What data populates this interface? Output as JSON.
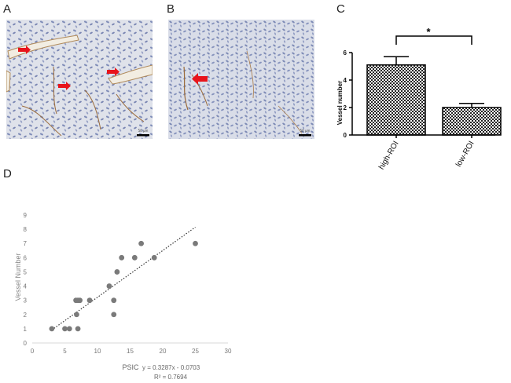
{
  "panels": {
    "a": "A",
    "b": "B",
    "c": "C",
    "d": "D"
  },
  "micrographs": {
    "a_scale": "50 μm",
    "b_scale": "50 μm",
    "arrow_color": "#e8141b",
    "tissue_color": "#bcc3d8",
    "vessel_color": "#9a6a3a"
  },
  "chart_data": [
    {
      "type": "bar",
      "panel": "C",
      "categories": [
        "high-ROI",
        "low-ROI"
      ],
      "values": [
        5.1,
        2.0
      ],
      "errors": [
        0.6,
        0.3
      ],
      "ylabel": "Vessel number",
      "xlabel": "",
      "ylim": [
        0,
        6
      ],
      "yticks": [
        0,
        2,
        4,
        6
      ],
      "significance": "*",
      "bar_pattern": "crosshatch",
      "grid": false
    },
    {
      "type": "scatter",
      "panel": "D",
      "xlabel": "PSIC",
      "ylabel": "Vessel Number",
      "xlim": [
        0,
        30
      ],
      "ylim": [
        0,
        9
      ],
      "xticks": [
        0,
        5,
        10,
        15,
        20,
        25,
        30
      ],
      "yticks": [
        0,
        1,
        2,
        3,
        4,
        5,
        6,
        7,
        8,
        9
      ],
      "points": [
        [
          3,
          1
        ],
        [
          5,
          1
        ],
        [
          5.7,
          1
        ],
        [
          7,
          1
        ],
        [
          6.8,
          2
        ],
        [
          12.5,
          2
        ],
        [
          6.7,
          3
        ],
        [
          7,
          3
        ],
        [
          7.3,
          3
        ],
        [
          8.8,
          3
        ],
        [
          12.5,
          3
        ],
        [
          11.8,
          4
        ],
        [
          13,
          5
        ],
        [
          13.7,
          6
        ],
        [
          15.7,
          6
        ],
        [
          18.7,
          6
        ],
        [
          16.7,
          7
        ],
        [
          25,
          7
        ]
      ],
      "trendline": {
        "slope": 0.3287,
        "intercept": -0.0703,
        "x_range": [
          3,
          25
        ]
      },
      "equation": "y = 0.3287x - 0.0703",
      "r_squared": "R² = 0.7694",
      "marker_color": "#7a7a7a",
      "grid": false
    }
  ]
}
